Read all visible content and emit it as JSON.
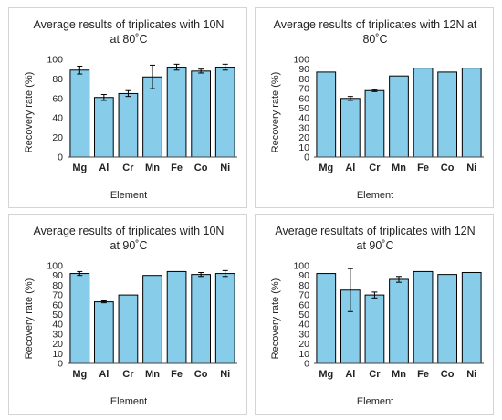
{
  "chart_data": [
    {
      "type": "bar",
      "title": "Average results of triplicates with 10N\nat 80˚C",
      "xlabel": "Element",
      "ylabel": "Recovery rate (%)",
      "categories": [
        "Mg",
        "Al",
        "Cr",
        "Mn",
        "Fe",
        "Co",
        "Ni"
      ],
      "values": [
        89,
        61,
        65,
        82,
        92,
        88,
        92
      ],
      "errors": [
        4,
        3,
        3,
        12,
        3,
        2,
        3
      ],
      "ylim": [
        0,
        100
      ],
      "yticks": [
        0,
        20,
        40,
        60,
        80,
        100
      ],
      "color": "#87cdea"
    },
    {
      "type": "bar",
      "title": "Average results of triplicates with 12N at\n80˚C",
      "xlabel": "Element",
      "ylabel": "Recovery rate (%)",
      "categories": [
        "Mg",
        "Al",
        "Cr",
        "Mn",
        "Fe",
        "Co",
        "Ni"
      ],
      "values": [
        87,
        60,
        68,
        83,
        91,
        87,
        91
      ],
      "errors": [
        0,
        2,
        1,
        0,
        0,
        0,
        0
      ],
      "ylim": [
        0,
        100
      ],
      "yticks": [
        0,
        10,
        20,
        30,
        40,
        50,
        60,
        70,
        80,
        90,
        100
      ],
      "color": "#87cdea"
    },
    {
      "type": "bar",
      "title": "Average results of triplicates with 10N\nat 90˚C",
      "xlabel": "Element",
      "ylabel": "Recovery rate (%)",
      "categories": [
        "Mg",
        "Al",
        "Cr",
        "Mn",
        "Fe",
        "Co",
        "Ni"
      ],
      "values": [
        92,
        63,
        70,
        90,
        94,
        91,
        92
      ],
      "errors": [
        2,
        1,
        0,
        0,
        0,
        2,
        3
      ],
      "ylim": [
        0,
        100
      ],
      "yticks": [
        0,
        10,
        20,
        30,
        40,
        50,
        60,
        70,
        80,
        90,
        100
      ],
      "color": "#87cdea"
    },
    {
      "type": "bar",
      "title": "Average resultats of triplicates with 12N\nat 90˚C",
      "xlabel": "Element",
      "ylabel": "Recovery rate (%)",
      "categories": [
        "Mg",
        "Al",
        "Cr",
        "Mn",
        "Fe",
        "Co",
        "Ni"
      ],
      "values": [
        92,
        75,
        70,
        86,
        94,
        91,
        93
      ],
      "errors": [
        0,
        22,
        3,
        3,
        0,
        0,
        0
      ],
      "ylim": [
        0,
        100
      ],
      "yticks": [
        0,
        10,
        20,
        30,
        40,
        50,
        60,
        70,
        80,
        90,
        100
      ],
      "color": "#87cdea"
    }
  ]
}
